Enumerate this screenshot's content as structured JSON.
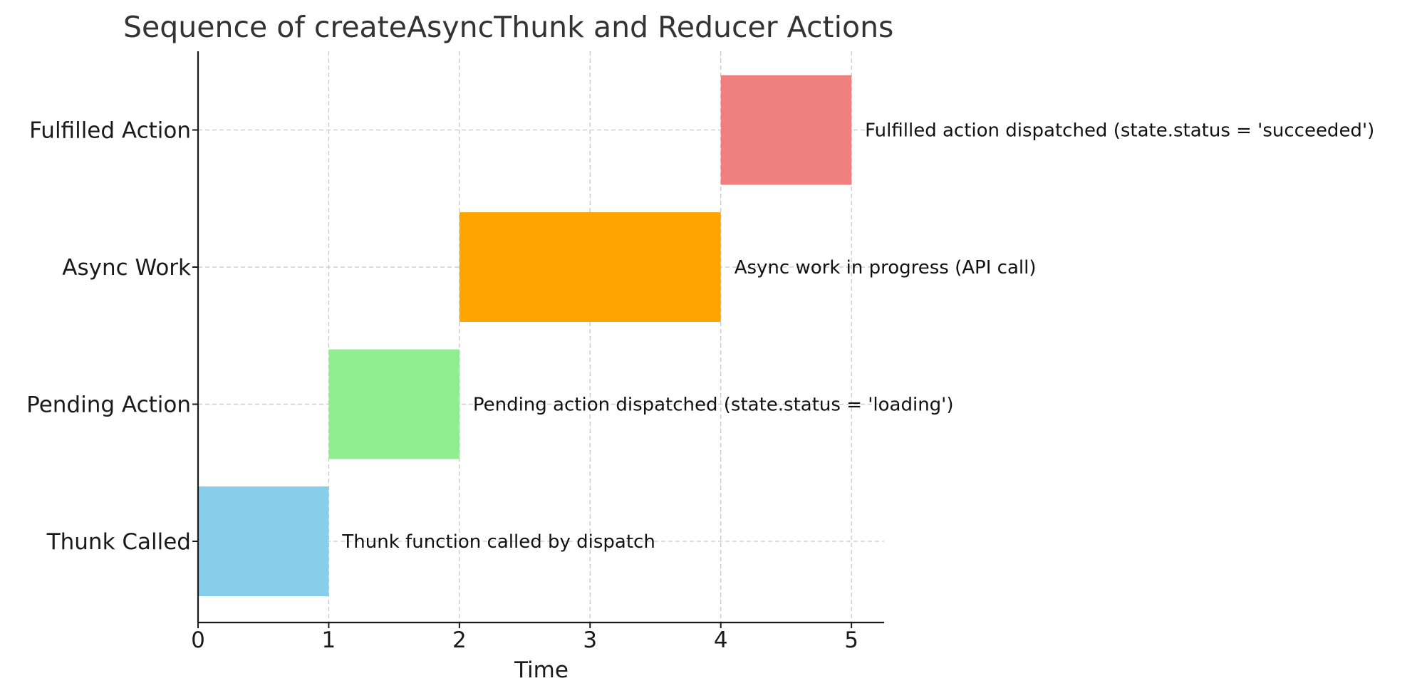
{
  "chart_data": {
    "type": "gantt",
    "title": "Sequence of createAsyncThunk and Reducer Actions",
    "xlabel": "Time",
    "ylabel": "",
    "xlim": [
      0,
      5.25
    ],
    "xticks": [
      0,
      1,
      2,
      3,
      4,
      5
    ],
    "grid": true,
    "categories": [
      "Thunk Called",
      "Pending Action",
      "Async Work",
      "Fulfilled Action"
    ],
    "bars": [
      {
        "category": "Thunk Called",
        "start": 0,
        "end": 1,
        "color": "#87CEEB",
        "annotation": "Thunk function called by dispatch"
      },
      {
        "category": "Pending Action",
        "start": 1,
        "end": 2,
        "color": "#90EE90",
        "annotation": "Pending action dispatched (state.status = 'loading')"
      },
      {
        "category": "Async Work",
        "start": 2,
        "end": 4,
        "color": "#FFA500",
        "annotation": "Async work in progress (API call)"
      },
      {
        "category": "Fulfilled Action",
        "start": 4,
        "end": 5,
        "color": "#F08080",
        "annotation": "Fulfilled action dispatched (state.status = 'succeeded')"
      }
    ]
  }
}
